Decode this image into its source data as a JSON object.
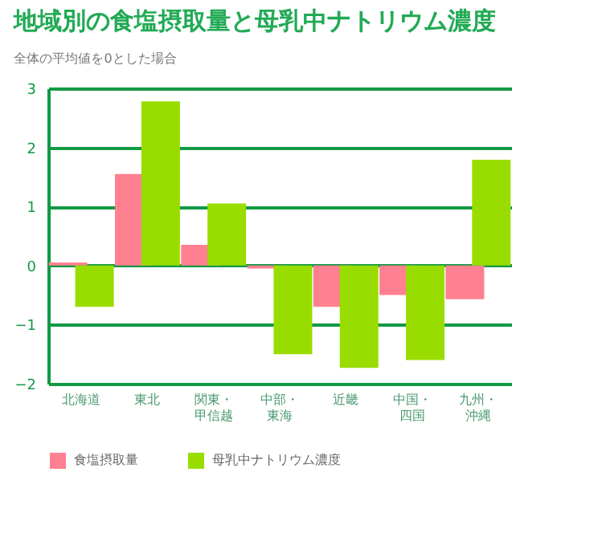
{
  "chart_data": {
    "type": "bar",
    "title": "地域別の食塩摂取量と母乳中ナトリウム濃度",
    "subtitle": "全体の平均値を0とした場合",
    "categories": [
      "北海道",
      "東北",
      "関東・甲信越",
      "中部・東海",
      "近畿",
      "中国・四国",
      "九州・沖縄"
    ],
    "series": [
      {
        "name": "食塩摂取量",
        "color": "#ff8090",
        "values": [
          0.05,
          1.55,
          0.35,
          -0.05,
          -0.7,
          -0.5,
          -0.57
        ]
      },
      {
        "name": "母乳中ナトリウム濃度",
        "color": "#99dd00",
        "values": [
          -0.7,
          2.78,
          1.05,
          -1.5,
          -1.73,
          -1.6,
          1.79
        ]
      }
    ],
    "ylim": [
      -2,
      3
    ],
    "yticks": [
      -2,
      -1,
      0,
      1,
      2,
      3
    ],
    "grid": "y",
    "legend": "bottom"
  }
}
